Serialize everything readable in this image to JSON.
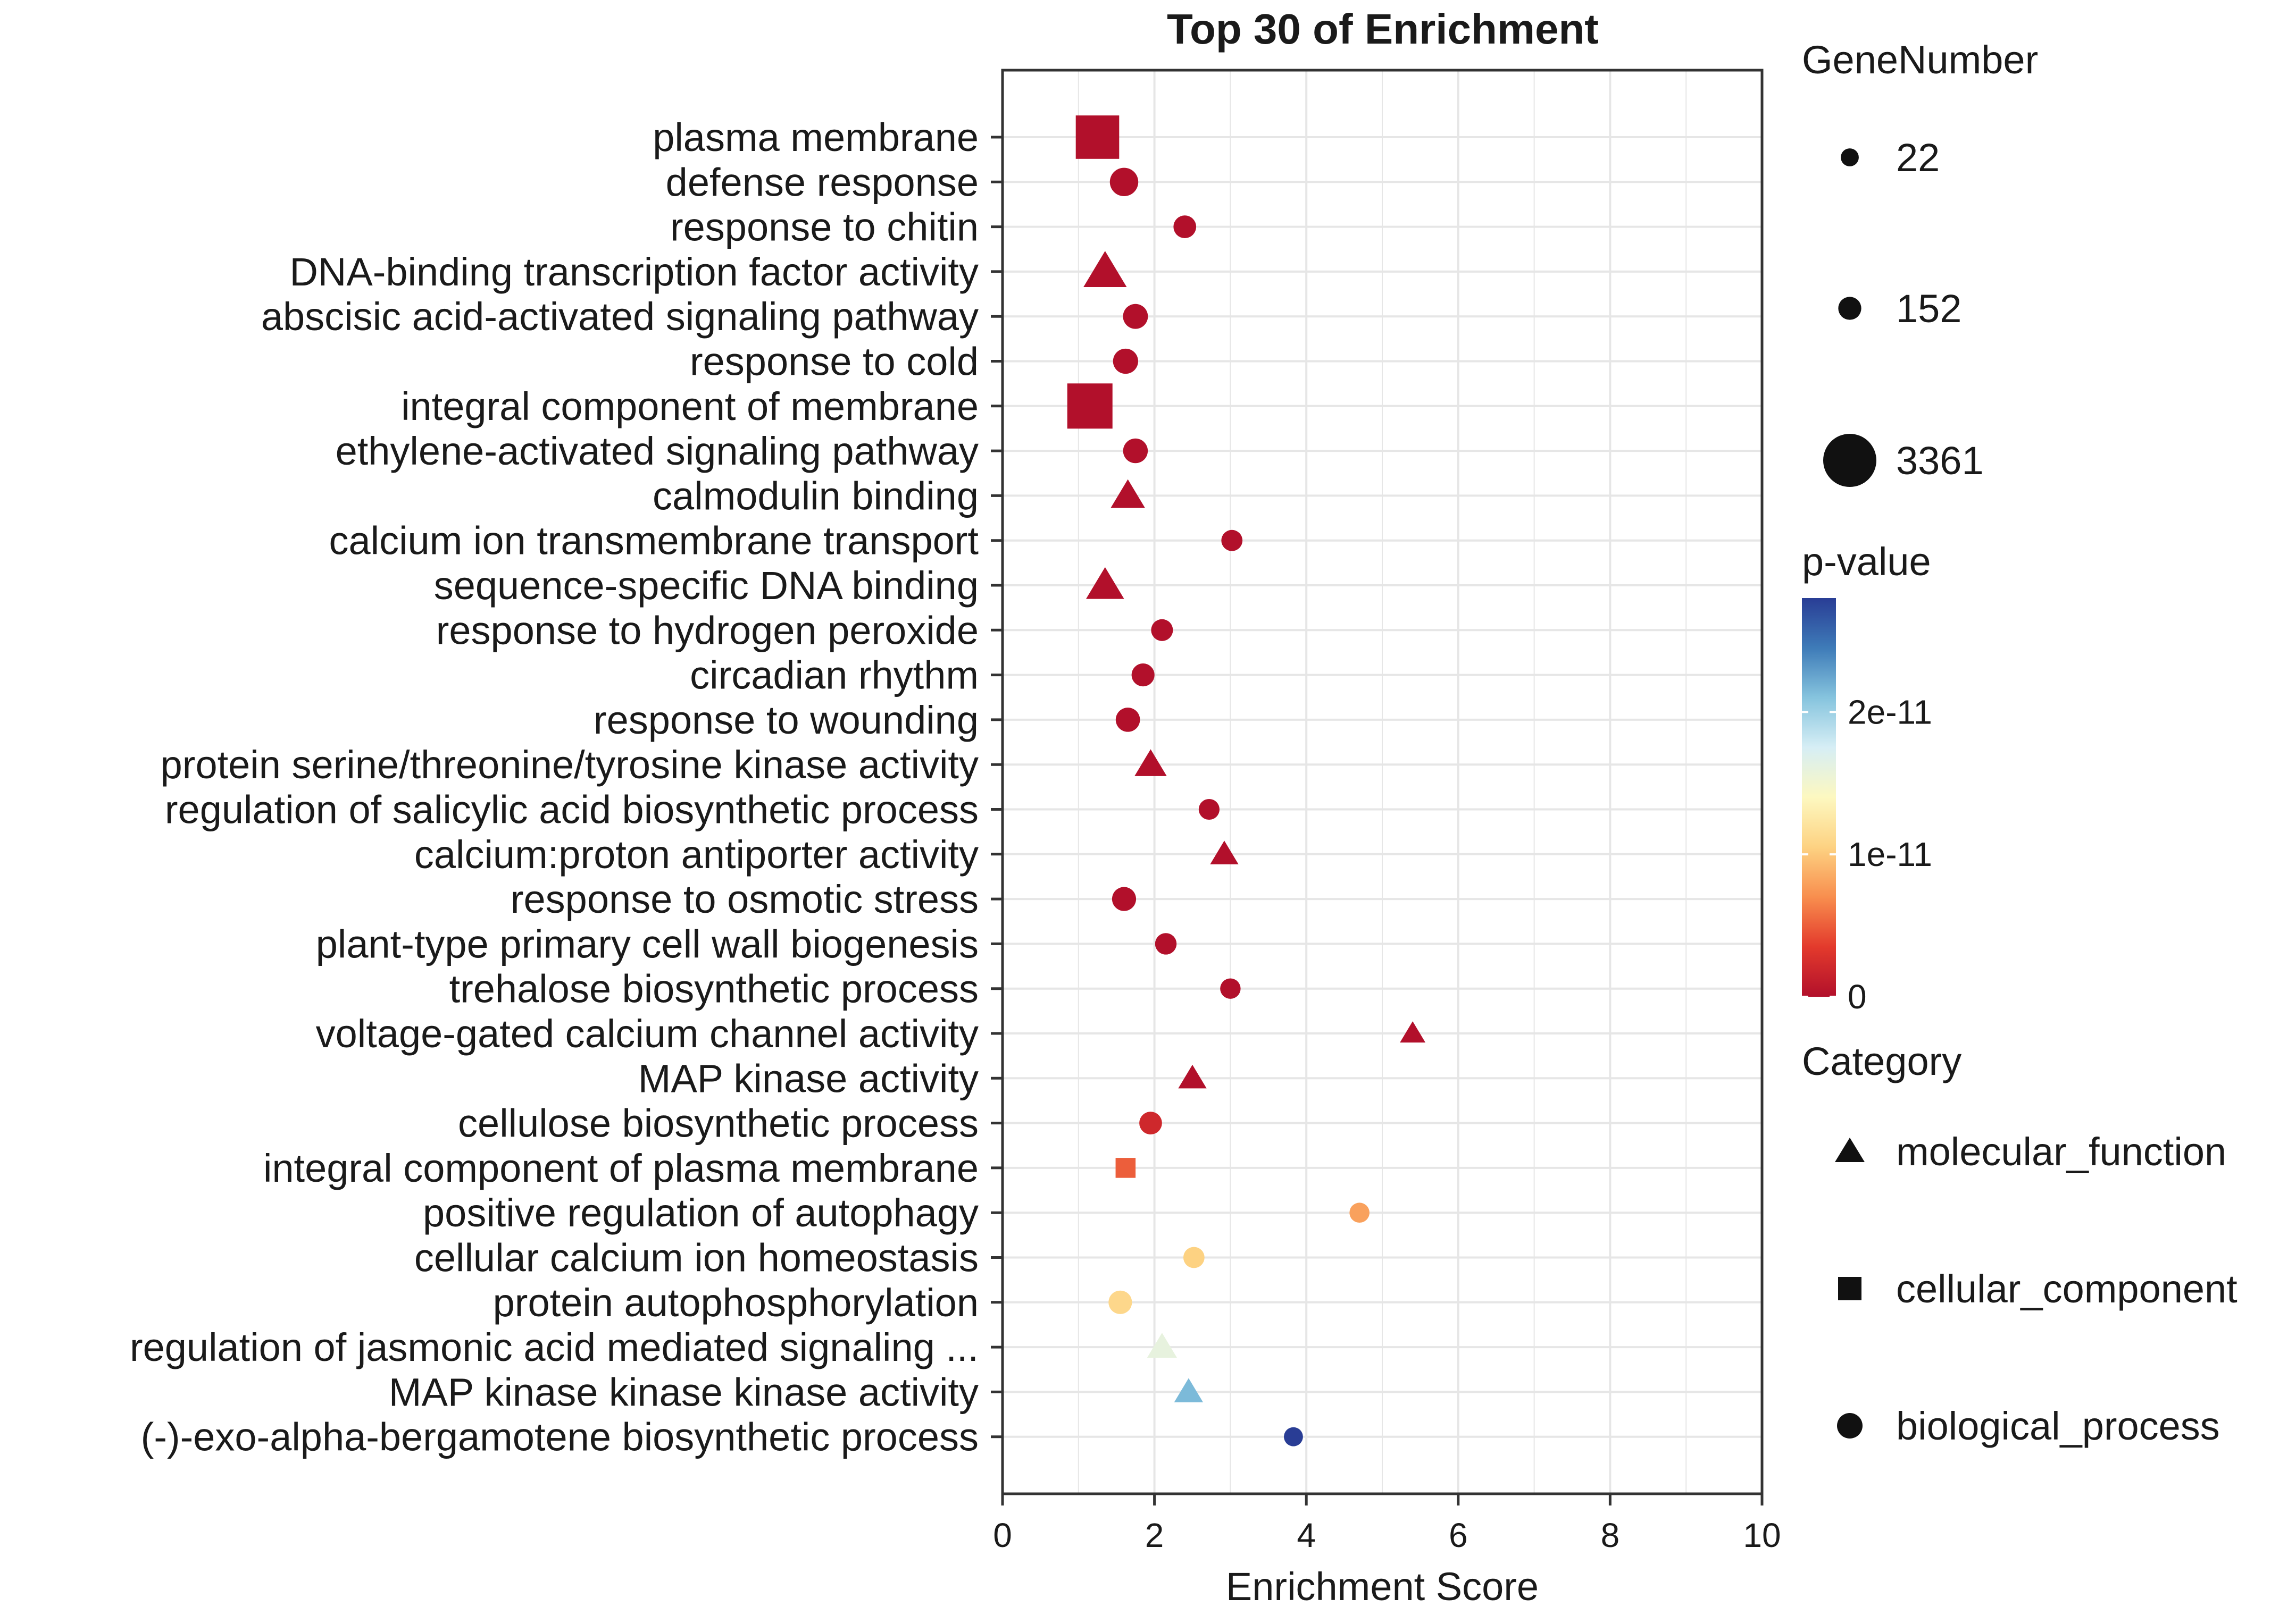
{
  "chart_data": {
    "type": "scatter",
    "title": "Top 30 of  Enrichment",
    "xlabel": "Enrichment Score",
    "ylabel": "",
    "xlim": [
      0,
      10
    ],
    "xticks": [
      "0",
      "2",
      "4",
      "6",
      "8",
      "10"
    ],
    "grid": true,
    "legend_placement": "right",
    "size_legend": {
      "title": "GeneNumber",
      "entries": [
        {
          "label": "22",
          "value": 22
        },
        {
          "label": "152",
          "value": 152
        },
        {
          "label": "3361",
          "value": 3361
        }
      ]
    },
    "color_legend": {
      "title": "p-value",
      "ticks": [
        {
          "label": "2e-11",
          "value": 2e-11
        },
        {
          "label": "1e-11",
          "value": 1e-11
        },
        {
          "label": "0",
          "value": 0
        }
      ],
      "range": [
        0,
        2.8e-11
      ],
      "colors": [
        "#b2102b",
        "#e33a2c",
        "#f88e4e",
        "#fdd282",
        "#fdf8c0",
        "#d6eef5",
        "#86c4de",
        "#3e7bb8",
        "#293d95"
      ]
    },
    "category_legend": {
      "title": "Category",
      "entries": [
        {
          "label": "molecular_function",
          "shape": "triangle"
        },
        {
          "label": "cellular_component",
          "shape": "square"
        },
        {
          "label": "biological_process",
          "shape": "circle"
        }
      ]
    },
    "points": [
      {
        "term": "plasma membrane",
        "score": 1.25,
        "genes": 3000,
        "pvalue": 0,
        "category": "cellular_component"
      },
      {
        "term": "defense response",
        "score": 1.6,
        "genes": 420,
        "pvalue": 0,
        "category": "biological_process"
      },
      {
        "term": "response to chitin",
        "score": 2.4,
        "genes": 140,
        "pvalue": 0,
        "category": "biological_process"
      },
      {
        "term": "DNA-binding transcription factor activity",
        "score": 1.35,
        "genes": 560,
        "pvalue": 0,
        "category": "molecular_function"
      },
      {
        "term": "abscisic acid-activated signaling pathway",
        "score": 1.75,
        "genes": 230,
        "pvalue": 0,
        "category": "biological_process"
      },
      {
        "term": "response to cold",
        "score": 1.62,
        "genes": 240,
        "pvalue": 0,
        "category": "biological_process"
      },
      {
        "term": "integral component of membrane",
        "score": 1.15,
        "genes": 3361,
        "pvalue": 0,
        "category": "cellular_component"
      },
      {
        "term": "ethylene-activated signaling pathway",
        "score": 1.75,
        "genes": 220,
        "pvalue": 0,
        "category": "biological_process"
      },
      {
        "term": "calmodulin binding",
        "score": 1.65,
        "genes": 200,
        "pvalue": 0,
        "category": "molecular_function"
      },
      {
        "term": "calcium ion transmembrane transport",
        "score": 3.02,
        "genes": 90,
        "pvalue": 0,
        "category": "biological_process"
      },
      {
        "term": "sequence-specific DNA binding",
        "score": 1.35,
        "genes": 330,
        "pvalue": 0,
        "category": "molecular_function"
      },
      {
        "term": "response to hydrogen peroxide",
        "score": 2.1,
        "genes": 110,
        "pvalue": 0,
        "category": "biological_process"
      },
      {
        "term": "circadian rhythm",
        "score": 1.85,
        "genes": 150,
        "pvalue": 0,
        "category": "biological_process"
      },
      {
        "term": "response to wounding",
        "score": 1.65,
        "genes": 200,
        "pvalue": 0,
        "category": "biological_process"
      },
      {
        "term": "protein serine/threonine/tyrosine kinase activity",
        "score": 1.95,
        "genes": 140,
        "pvalue": 0,
        "category": "molecular_function"
      },
      {
        "term": "regulation of salicylic acid biosynthetic process",
        "score": 2.72,
        "genes": 80,
        "pvalue": 0,
        "category": "biological_process"
      },
      {
        "term": "calcium:proton antiporter activity",
        "score": 2.92,
        "genes": 60,
        "pvalue": 0,
        "category": "molecular_function"
      },
      {
        "term": "response to osmotic stress",
        "score": 1.6,
        "genes": 190,
        "pvalue": 0,
        "category": "biological_process"
      },
      {
        "term": "plant-type primary cell wall biogenesis",
        "score": 2.15,
        "genes": 100,
        "pvalue": 0,
        "category": "biological_process"
      },
      {
        "term": "trehalose biosynthetic process",
        "score": 3.0,
        "genes": 70,
        "pvalue": 0,
        "category": "biological_process"
      },
      {
        "term": "voltage-gated calcium channel activity",
        "score": 5.4,
        "genes": 22,
        "pvalue": 0,
        "category": "molecular_function"
      },
      {
        "term": "MAP kinase activity",
        "score": 2.5,
        "genes": 60,
        "pvalue": 0,
        "category": "molecular_function"
      },
      {
        "term": "cellulose biosynthetic process",
        "score": 1.95,
        "genes": 140,
        "pvalue": 2e-12,
        "category": "biological_process"
      },
      {
        "term": "integral component of plasma membrane",
        "score": 1.62,
        "genes": 170,
        "pvalue": 5e-12,
        "category": "cellular_component"
      },
      {
        "term": "positive regulation of autophagy",
        "score": 4.7,
        "genes": 60,
        "pvalue": 8e-12,
        "category": "biological_process"
      },
      {
        "term": "cellular calcium ion homeostasis",
        "score": 2.52,
        "genes": 90,
        "pvalue": 1.05e-11,
        "category": "biological_process"
      },
      {
        "term": "protein autophosphorylation",
        "score": 1.55,
        "genes": 170,
        "pvalue": 1.1e-11,
        "category": "biological_process"
      },
      {
        "term": "regulation of jasmonic acid mediated signaling ...",
        "score": 2.1,
        "genes": 90,
        "pvalue": 1.6e-11,
        "category": "molecular_function"
      },
      {
        "term": "MAP kinase kinase kinase activity",
        "score": 2.45,
        "genes": 70,
        "pvalue": 2.15e-11,
        "category": "molecular_function"
      },
      {
        "term": "(-)-exo-alpha-bergamotene biosynthetic process",
        "score": 3.83,
        "genes": 40,
        "pvalue": 2.8e-11,
        "category": "biological_process"
      }
    ]
  }
}
